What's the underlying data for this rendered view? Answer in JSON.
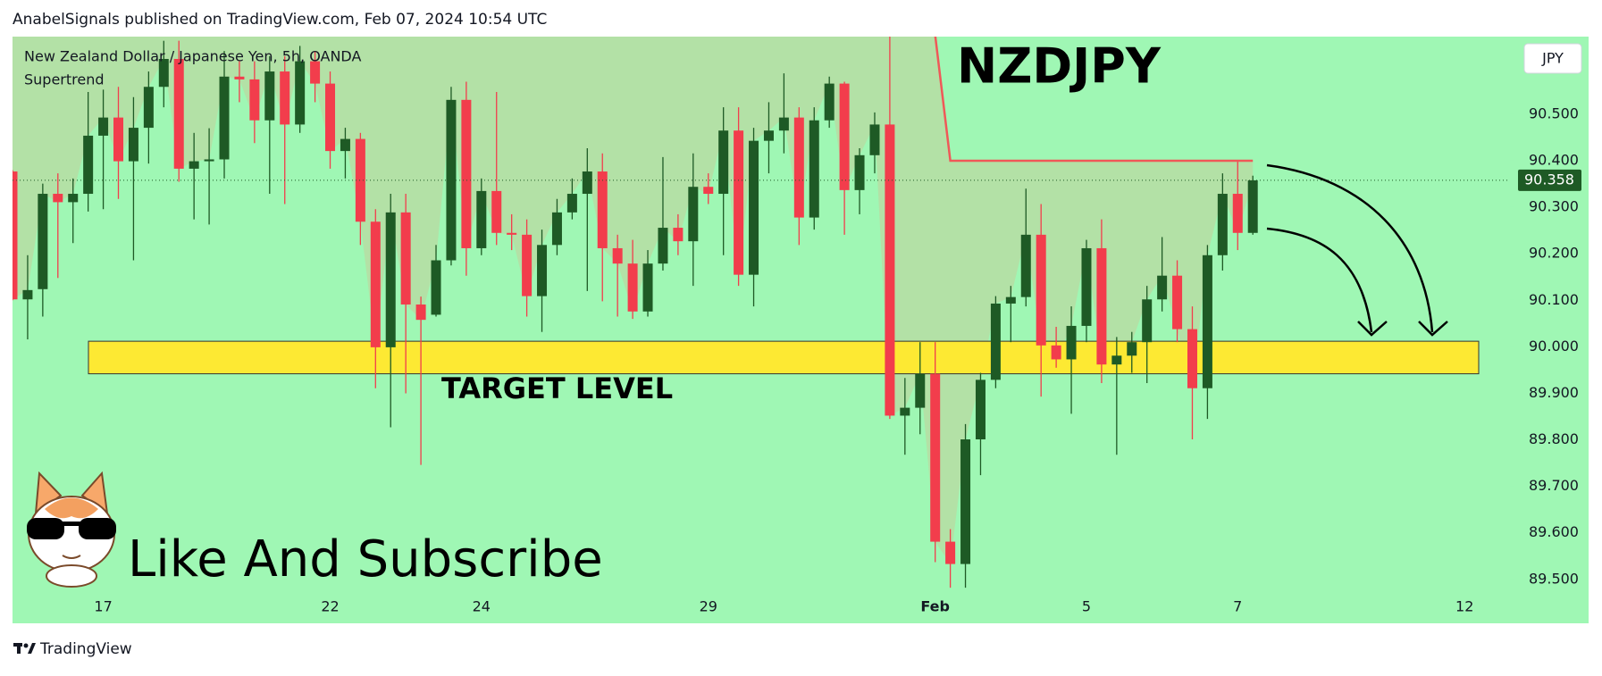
{
  "header": {
    "text": "AnabelSignals published on TradingView.com, Feb 07, 2024 10:54 UTC"
  },
  "chart_data": {
    "type": "candlestick",
    "title": "NZDJPY",
    "subtitle": "New Zealand Dollar / Japanese Yen, 5h, OANDA",
    "currency": "JPY",
    "annotation": "Like And Subscribe",
    "categories": [
      null,
      null,
      null,
      null,
      null,
      null,
      "17",
      null,
      null,
      null,
      null,
      null,
      null,
      null,
      null,
      null,
      null,
      null,
      null,
      null,
      null,
      "22",
      null,
      null,
      null,
      null,
      null,
      null,
      null,
      null,
      null,
      "24",
      null,
      null,
      null,
      null,
      null,
      null,
      null,
      null,
      null,
      null,
      null,
      null,
      null,
      null,
      "29",
      null,
      null,
      null,
      null,
      null,
      null,
      null,
      null,
      null,
      null,
      null,
      null,
      null,
      null,
      "Feb",
      null,
      null,
      null,
      null,
      null,
      null,
      null,
      null,
      null,
      "5",
      null,
      null,
      null,
      null,
      null,
      null,
      null,
      null,
      null,
      "7",
      null,
      null,
      null,
      null,
      null,
      null,
      null,
      null,
      null,
      null,
      null,
      null,
      null,
      null,
      "12",
      null,
      null,
      null
    ],
    "open": [
      90.377,
      90.102,
      90.124,
      90.329,
      90.311,
      90.329,
      90.454,
      90.493,
      90.399,
      90.471,
      90.559,
      90.619,
      90.383,
      90.399,
      90.403,
      90.581,
      90.575,
      90.487,
      90.592,
      90.478,
      90.614,
      90.566,
      90.421,
      90.447,
      90.269,
      89.999,
      90.289,
      90.091,
      90.069,
      90.186,
      90.531,
      90.212,
      90.335,
      90.245,
      90.241,
      90.109,
      90.219,
      90.289,
      90.329,
      90.377,
      90.212,
      90.179,
      90.076,
      90.179,
      90.256,
      90.227,
      90.344,
      90.329,
      90.465,
      90.155,
      90.443,
      90.465,
      90.493,
      90.278,
      90.487,
      90.566,
      90.337,
      90.412,
      90.478,
      89.852,
      89.869,
      89.942,
      89.581,
      89.533,
      89.801,
      89.929,
      90.093,
      90.107,
      90.241,
      90.003,
      89.973,
      90.045,
      90.212,
      89.962,
      89.981,
      90.01,
      90.102,
      90.153,
      90.038,
      89.911,
      90.197,
      90.329,
      90.245,
      null,
      null,
      null,
      null,
      null,
      null,
      null,
      null,
      null,
      null,
      null,
      null,
      null,
      null,
      null,
      null,
      null
    ],
    "high": [
      90.38,
      90.197,
      90.351,
      90.373,
      90.362,
      90.548,
      90.553,
      90.559,
      90.537,
      90.592,
      90.658,
      90.658,
      90.46,
      90.47,
      90.636,
      90.614,
      90.614,
      90.625,
      90.625,
      90.647,
      90.636,
      90.592,
      90.471,
      90.46,
      90.296,
      90.329,
      90.329,
      90.108,
      90.219,
      90.559,
      90.57,
      90.362,
      90.548,
      90.285,
      90.274,
      90.252,
      90.318,
      90.362,
      90.427,
      90.416,
      90.241,
      90.23,
      90.208,
      90.408,
      90.285,
      90.416,
      90.373,
      90.515,
      90.515,
      90.471,
      90.526,
      90.588,
      90.515,
      90.515,
      90.581,
      90.57,
      90.427,
      90.504,
      90.667,
      89.933,
      90.01,
      90.01,
      89.608,
      89.834,
      89.944,
      90.109,
      90.131,
      90.34,
      90.307,
      90.043,
      90.087,
      90.23,
      90.274,
      90.021,
      90.032,
      90.131,
      90.236,
      90.186,
      90.087,
      90.219,
      90.373,
      90.399,
      90.368,
      null,
      null,
      null,
      null,
      null,
      null,
      null,
      null,
      null,
      null,
      null,
      null,
      null,
      null,
      null,
      null,
      null
    ],
    "low": [
      90.1,
      90.016,
      90.065,
      90.148,
      90.223,
      90.291,
      90.296,
      90.318,
      90.186,
      90.394,
      90.515,
      90.355,
      90.274,
      90.263,
      90.362,
      90.526,
      90.438,
      90.329,
      90.307,
      90.46,
      90.526,
      90.383,
      90.362,
      90.219,
      89.911,
      89.827,
      89.9,
      89.746,
      90.065,
      90.175,
      90.153,
      90.197,
      90.219,
      90.208,
      90.065,
      90.032,
      90.197,
      90.274,
      90.12,
      90.098,
      90.065,
      90.06,
      90.065,
      90.164,
      90.197,
      90.131,
      90.307,
      90.197,
      90.131,
      90.087,
      90.373,
      90.416,
      90.219,
      90.252,
      90.471,
      90.241,
      90.285,
      90.373,
      89.845,
      89.768,
      89.812,
      89.537,
      89.482,
      89.482,
      89.724,
      89.911,
      90.01,
      90.087,
      89.893,
      89.955,
      89.856,
      90.01,
      89.922,
      89.768,
      89.944,
      89.922,
      90.076,
      90.01,
      89.801,
      89.845,
      90.164,
      90.208,
      90.241,
      null,
      null,
      null,
      null,
      null,
      null,
      null,
      null,
      null,
      null,
      null,
      null,
      null,
      null,
      null,
      null,
      null
    ],
    "close": [
      90.102,
      90.122,
      90.329,
      90.311,
      90.329,
      90.454,
      90.493,
      90.399,
      90.471,
      90.559,
      90.619,
      90.383,
      90.399,
      90.403,
      90.581,
      90.575,
      90.487,
      90.592,
      90.478,
      90.614,
      90.566,
      90.421,
      90.447,
      90.269,
      89.999,
      90.289,
      90.091,
      90.058,
      90.186,
      90.531,
      90.212,
      90.335,
      90.245,
      90.241,
      90.109,
      90.219,
      90.289,
      90.329,
      90.377,
      90.212,
      90.179,
      90.076,
      90.179,
      90.256,
      90.227,
      90.344,
      90.329,
      90.465,
      90.155,
      90.443,
      90.465,
      90.493,
      90.278,
      90.487,
      90.566,
      90.337,
      90.412,
      90.478,
      89.852,
      89.869,
      89.942,
      89.581,
      89.533,
      89.801,
      89.929,
      90.093,
      90.107,
      90.241,
      90.003,
      89.973,
      90.045,
      90.212,
      89.962,
      89.981,
      90.01,
      90.102,
      90.153,
      90.038,
      89.911,
      90.197,
      90.329,
      90.245,
      90.358,
      null,
      null,
      null,
      null,
      null,
      null,
      null,
      null,
      null,
      null,
      null,
      null,
      null,
      null,
      null,
      null,
      null
    ],
    "up_color": "#1e5a25",
    "down_color": "#f23d4c",
    "supertrend": {
      "name": "Supertrend",
      "color": "#f05858",
      "values": [
        null,
        null,
        null,
        null,
        null,
        null,
        null,
        null,
        null,
        null,
        null,
        null,
        null,
        null,
        null,
        null,
        null,
        null,
        null,
        null,
        null,
        null,
        null,
        null,
        null,
        null,
        null,
        null,
        null,
        null,
        null,
        null,
        null,
        null,
        null,
        null,
        null,
        null,
        null,
        null,
        null,
        null,
        null,
        null,
        null,
        null,
        null,
        null,
        null,
        null,
        null,
        null,
        null,
        null,
        null,
        null,
        null,
        null,
        null,
        null,
        null,
        90.67,
        90.4,
        90.4,
        90.4,
        90.4,
        90.4,
        90.4,
        90.4,
        90.4,
        90.4,
        90.4,
        90.4,
        90.4,
        90.4,
        90.4,
        90.4,
        90.4,
        90.4,
        90.4,
        90.4,
        90.4,
        90.4,
        null,
        null,
        null,
        null,
        null,
        null,
        null,
        null,
        null,
        null,
        null,
        null,
        null,
        null,
        null,
        null,
        null
      ]
    },
    "ylim": [
      89.465,
      90.667
    ],
    "yticks": [
      {
        "value": 89.5,
        "label": "89.500"
      },
      {
        "value": 89.6,
        "label": "89.600"
      },
      {
        "value": 89.7,
        "label": "89.700"
      },
      {
        "value": 89.8,
        "label": "89.800"
      },
      {
        "value": 89.9,
        "label": "89.900"
      },
      {
        "value": 90.0,
        "label": "90.000"
      },
      {
        "value": 90.1,
        "label": "90.100"
      },
      {
        "value": 90.2,
        "label": "90.200"
      },
      {
        "value": 90.3,
        "label": "90.300"
      },
      {
        "value": 90.4,
        "label": "90.400"
      },
      {
        "value": 90.5,
        "label": "90.500"
      }
    ],
    "last_price": 90.358,
    "target_zone": {
      "label": "TARGET LEVEL",
      "low": 89.942,
      "high": 90.012,
      "color": "#fde933"
    }
  },
  "footer": {
    "brand": "TradingView"
  }
}
